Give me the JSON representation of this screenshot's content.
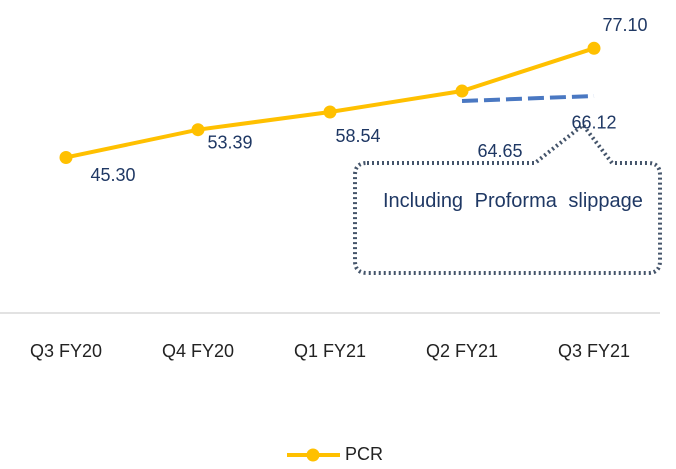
{
  "chart_data": {
    "type": "line",
    "categories": [
      "Q3 FY20",
      "Q4 FY20",
      "Q1 FY21",
      "Q2 FY21",
      "Q3 FY21"
    ],
    "series": [
      {
        "name": "PCR",
        "color": "#ffc000",
        "values": [
          45.3,
          53.39,
          58.54,
          64.65,
          77.1
        ],
        "value_labels": [
          "45.30",
          "53.39",
          "58.54",
          "64.65",
          "77.10"
        ]
      }
    ],
    "proforma": {
      "color": "#4a78c2",
      "dashed": true,
      "values": [
        null,
        null,
        null,
        64.65,
        66.12
      ],
      "value_labels": [
        null,
        null,
        null,
        null,
        "66.12"
      ]
    },
    "annotation": "Including Proforma slippage",
    "ylim": [
      0,
      90
    ],
    "grid": false,
    "legend": "bottom"
  }
}
